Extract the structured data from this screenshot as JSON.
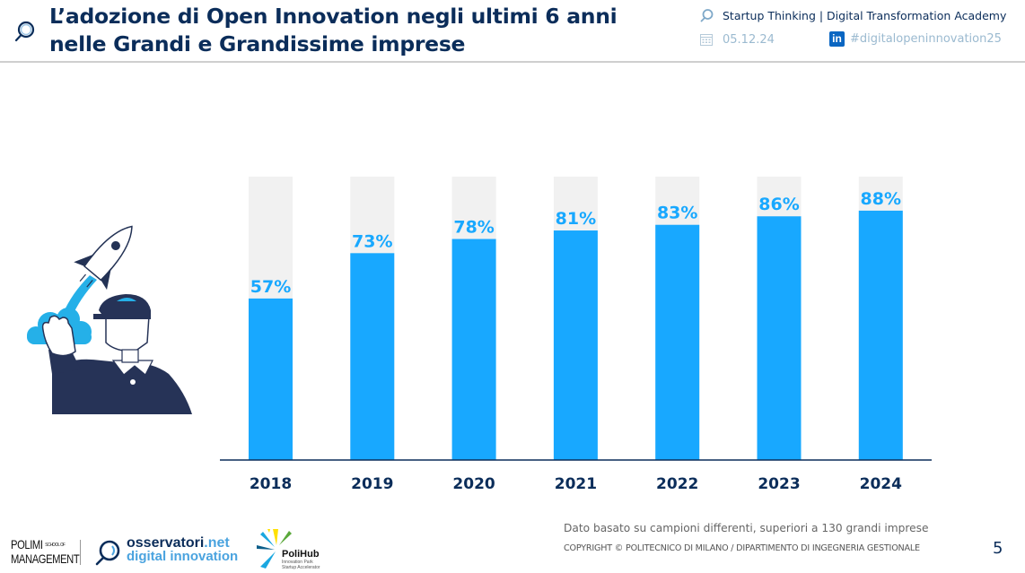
{
  "header": {
    "title_lines": [
      "L’adozione di Open Innovation negli ultimi 6 anni",
      "nelle Grandi e Grandissime imprese"
    ],
    "title_icon": "magnifier-icon",
    "event": "Startup Thinking | Digital Transformation Academy",
    "date": "05.12.24",
    "hashtag": "#digitalopeninnovation25",
    "linkedin_label": "in"
  },
  "colors": {
    "accent": "#18a8ff",
    "bar_background": "#f1f1f1",
    "title": "#0b2d5a",
    "axis": "#0b2d5a"
  },
  "chart_data": {
    "type": "bar",
    "title": "L’adozione di Open Innovation negli ultimi 6 anni nelle Grandi e Grandissime imprese",
    "xlabel": "",
    "ylabel": "",
    "ylim": [
      0,
      100
    ],
    "grid": false,
    "categories": [
      "2018",
      "2019",
      "2020",
      "2021",
      "2022",
      "2023",
      "2024"
    ],
    "values": [
      57,
      73,
      78,
      81,
      83,
      86,
      88
    ],
    "data_labels": [
      "57%",
      "73%",
      "78%",
      "81%",
      "83%",
      "86%",
      "88%"
    ],
    "background_bar_value": 100
  },
  "footer": {
    "note": "Dato basato su campioni differenti, superiori a 130 grandi imprese",
    "copyright": "COPYRIGHT © POLITECNICO DI MILANO / DIPARTIMENTO DI INGEGNERIA GESTIONALE",
    "page_number": "5",
    "logos": {
      "polimi_line1": "POLIMI",
      "polimi_small": "SCHOOL OF",
      "polimi_line2": "MANAGEMENT",
      "osservatori_main": "osservatori",
      "osservatori_suffix": ".net",
      "osservatori_line2": "digital innovation",
      "polihub_name": "PoliHub",
      "polihub_sub1": "Innovation Park",
      "polihub_sub2": "Startup Accelerator"
    }
  }
}
